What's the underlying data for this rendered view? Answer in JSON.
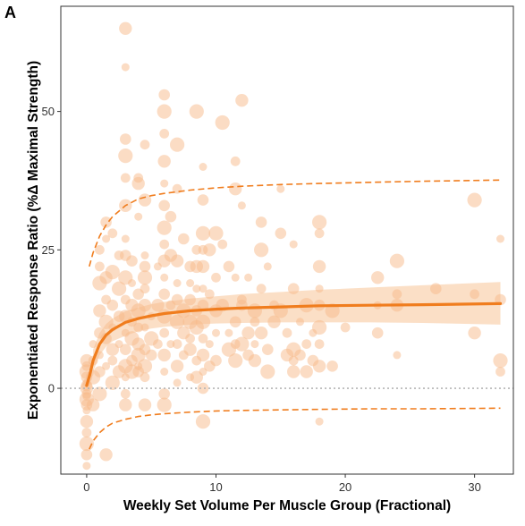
{
  "panel_label": "A",
  "colors": {
    "accent": "#f07d1e",
    "point": "#f7b98a",
    "band": "#f9c9a0",
    "zero_line": "#b5b5b5",
    "frame": "#333333"
  },
  "chart_data": {
    "type": "scatter",
    "title": "",
    "xlabel": "Weekly Set Volume Per Muscle Group (Fractional)",
    "ylabel": "Exponentiated Response Ratio (%Δ Maximal Strength)",
    "xlim": [
      -2,
      33
    ],
    "ylim": [
      -15.5,
      69
    ],
    "x_ticks": [
      0,
      10,
      20,
      30
    ],
    "y_ticks": [
      0,
      25,
      50
    ],
    "x_tick_labels": [
      "0",
      "10",
      "20",
      "30"
    ],
    "y_tick_labels": [
      "0",
      "25",
      "50"
    ],
    "grid": false,
    "legend": "none",
    "reference_line": {
      "y": 0,
      "style": "dotted"
    },
    "points": [
      [
        0,
        -14
      ],
      [
        0,
        -12
      ],
      [
        0,
        -10
      ],
      [
        0,
        -8
      ],
      [
        0,
        -6
      ],
      [
        0,
        -4
      ],
      [
        0,
        -3
      ],
      [
        0,
        -2
      ],
      [
        0,
        -1
      ],
      [
        0,
        0
      ],
      [
        0,
        1
      ],
      [
        0,
        2
      ],
      [
        0,
        3
      ],
      [
        0,
        4
      ],
      [
        0,
        5
      ],
      [
        0,
        -1.5
      ],
      [
        0,
        0.5
      ],
      [
        0.5,
        2
      ],
      [
        0.5,
        5
      ],
      [
        0.5,
        -3
      ],
      [
        0.5,
        8
      ],
      [
        1,
        10
      ],
      [
        1,
        19
      ],
      [
        1,
        22
      ],
      [
        1,
        14
      ],
      [
        1,
        6
      ],
      [
        1,
        3
      ],
      [
        1,
        -1
      ],
      [
        1,
        25
      ],
      [
        1.5,
        -12
      ],
      [
        1.5,
        4
      ],
      [
        1.5,
        9
      ],
      [
        1.5,
        12
      ],
      [
        1.5,
        16
      ],
      [
        1.5,
        20
      ],
      [
        1.5,
        27
      ],
      [
        1.5,
        30
      ],
      [
        2,
        1
      ],
      [
        2,
        5
      ],
      [
        2,
        7
      ],
      [
        2,
        11
      ],
      [
        2,
        15
      ],
      [
        2,
        21
      ],
      [
        2,
        28
      ],
      [
        2.5,
        3
      ],
      [
        2.5,
        8
      ],
      [
        2.5,
        13
      ],
      [
        2.5,
        18
      ],
      [
        2.5,
        24
      ],
      [
        3,
        65
      ],
      [
        3,
        58
      ],
      [
        3,
        45
      ],
      [
        3,
        42
      ],
      [
        3,
        38
      ],
      [
        3,
        33
      ],
      [
        3,
        27
      ],
      [
        3,
        24
      ],
      [
        3,
        20
      ],
      [
        3,
        16
      ],
      [
        3,
        13
      ],
      [
        3,
        10
      ],
      [
        3,
        7
      ],
      [
        3,
        4
      ],
      [
        3,
        -1
      ],
      [
        3,
        -3
      ],
      [
        3,
        2
      ],
      [
        3.5,
        5
      ],
      [
        3.5,
        9
      ],
      [
        3.5,
        12
      ],
      [
        3.5,
        15
      ],
      [
        3.5,
        19
      ],
      [
        3.5,
        23
      ],
      [
        3.5,
        3
      ],
      [
        4,
        38
      ],
      [
        4,
        37
      ],
      [
        4,
        31
      ],
      [
        4,
        17
      ],
      [
        4,
        14
      ],
      [
        4,
        11
      ],
      [
        4,
        8
      ],
      [
        4,
        4
      ],
      [
        4,
        3
      ],
      [
        4,
        6
      ],
      [
        4.5,
        44
      ],
      [
        4.5,
        34
      ],
      [
        4.5,
        24
      ],
      [
        4.5,
        22
      ],
      [
        4.5,
        20
      ],
      [
        4.5,
        18
      ],
      [
        4.5,
        15
      ],
      [
        4.5,
        11
      ],
      [
        4.5,
        7
      ],
      [
        4.5,
        4
      ],
      [
        4.5,
        2
      ],
      [
        4.5,
        -3
      ],
      [
        5,
        13
      ],
      [
        5,
        6
      ],
      [
        5,
        9
      ],
      [
        5.5,
        8
      ],
      [
        5.5,
        15
      ],
      [
        5.5,
        22
      ],
      [
        6,
        53
      ],
      [
        6,
        50
      ],
      [
        6,
        46
      ],
      [
        6,
        41
      ],
      [
        6,
        37
      ],
      [
        6,
        33
      ],
      [
        6,
        29
      ],
      [
        6,
        26
      ],
      [
        6,
        23
      ],
      [
        6,
        20
      ],
      [
        6,
        17
      ],
      [
        6,
        13
      ],
      [
        6,
        10
      ],
      [
        6,
        6
      ],
      [
        6,
        3
      ],
      [
        6,
        -1
      ],
      [
        6,
        -3
      ],
      [
        6.5,
        15
      ],
      [
        6.5,
        24
      ],
      [
        6.5,
        8
      ],
      [
        6.5,
        31
      ],
      [
        7,
        44
      ],
      [
        7,
        36
      ],
      [
        7,
        23
      ],
      [
        7,
        19
      ],
      [
        7,
        16
      ],
      [
        7,
        12
      ],
      [
        7,
        8
      ],
      [
        7,
        4
      ],
      [
        7,
        1
      ],
      [
        7.5,
        27
      ],
      [
        7.5,
        14
      ],
      [
        7.5,
        6
      ],
      [
        7.5,
        10
      ],
      [
        8,
        19
      ],
      [
        8,
        16
      ],
      [
        8,
        12
      ],
      [
        8,
        9
      ],
      [
        8,
        7
      ],
      [
        8,
        2
      ],
      [
        8,
        22
      ],
      [
        8.5,
        50
      ],
      [
        8.5,
        25
      ],
      [
        8.5,
        22
      ],
      [
        8.5,
        18
      ],
      [
        8.5,
        14
      ],
      [
        8.5,
        11
      ],
      [
        8.5,
        5
      ],
      [
        8.5,
        2
      ],
      [
        9,
        40
      ],
      [
        9,
        34
      ],
      [
        9,
        28
      ],
      [
        9,
        25
      ],
      [
        9,
        22
      ],
      [
        9,
        18
      ],
      [
        9,
        15
      ],
      [
        9,
        12
      ],
      [
        9,
        9
      ],
      [
        9,
        6
      ],
      [
        9,
        3
      ],
      [
        9,
        0
      ],
      [
        9,
        -6
      ],
      [
        9.5,
        17
      ],
      [
        9.5,
        25
      ],
      [
        9.5,
        8
      ],
      [
        9.5,
        4
      ],
      [
        10,
        28
      ],
      [
        10,
        20
      ],
      [
        10,
        14
      ],
      [
        10,
        10
      ],
      [
        10,
        5
      ],
      [
        10.5,
        48
      ],
      [
        10.5,
        26
      ],
      [
        10.5,
        15
      ],
      [
        11,
        10
      ],
      [
        11,
        22
      ],
      [
        11,
        7
      ],
      [
        11.5,
        41
      ],
      [
        11.5,
        36
      ],
      [
        11.5,
        20
      ],
      [
        11.5,
        12
      ],
      [
        11.5,
        5
      ],
      [
        11.5,
        8
      ],
      [
        12,
        52
      ],
      [
        12,
        33
      ],
      [
        12,
        15
      ],
      [
        12,
        8
      ],
      [
        12,
        16
      ],
      [
        12.5,
        10
      ],
      [
        12.5,
        20
      ],
      [
        12.5,
        6
      ],
      [
        13,
        14
      ],
      [
        13,
        12
      ],
      [
        13,
        5
      ],
      [
        13,
        8
      ],
      [
        13.5,
        30
      ],
      [
        13.5,
        25
      ],
      [
        13.5,
        18
      ],
      [
        13.5,
        10
      ],
      [
        14,
        22
      ],
      [
        14,
        7
      ],
      [
        14,
        3
      ],
      [
        14.5,
        15
      ],
      [
        14.5,
        12
      ],
      [
        15,
        36
      ],
      [
        15,
        28
      ],
      [
        15,
        14
      ],
      [
        15.5,
        10
      ],
      [
        15.5,
        6
      ],
      [
        16,
        26
      ],
      [
        16,
        18
      ],
      [
        16,
        7
      ],
      [
        16,
        5
      ],
      [
        16,
        3
      ],
      [
        16.5,
        12
      ],
      [
        16.5,
        6
      ],
      [
        17,
        15
      ],
      [
        17,
        8
      ],
      [
        17,
        3
      ],
      [
        17.5,
        10
      ],
      [
        17.5,
        5
      ],
      [
        18,
        30
      ],
      [
        18,
        28
      ],
      [
        18,
        22
      ],
      [
        18,
        18
      ],
      [
        18,
        15
      ],
      [
        18,
        11
      ],
      [
        18,
        8
      ],
      [
        18,
        4
      ],
      [
        18,
        -6
      ],
      [
        19,
        4
      ],
      [
        19,
        14
      ],
      [
        20,
        11
      ],
      [
        22.5,
        20
      ],
      [
        22.5,
        15
      ],
      [
        22.5,
        10
      ],
      [
        24,
        23
      ],
      [
        24,
        17
      ],
      [
        24,
        15
      ],
      [
        24,
        6
      ],
      [
        27,
        18
      ],
      [
        30,
        34
      ],
      [
        30,
        17
      ],
      [
        30,
        10
      ],
      [
        32,
        27
      ],
      [
        32,
        16
      ],
      [
        32,
        5
      ],
      [
        32,
        3
      ]
    ],
    "fit_line": {
      "x": [
        0,
        0.25,
        0.5,
        1,
        1.5,
        2,
        3,
        4,
        5,
        6,
        8,
        10,
        12,
        15,
        18,
        22,
        26,
        32
      ],
      "y": [
        0.5,
        2.5,
        5,
        8,
        9.6,
        10.6,
        11.9,
        12.6,
        13.1,
        13.5,
        14,
        14.3,
        14.5,
        14.7,
        14.9,
        15,
        15.1,
        15.3
      ]
    },
    "ci_band": {
      "x": [
        0.5,
        1,
        1.5,
        2,
        3,
        4,
        5,
        6,
        8,
        10,
        12,
        15,
        18,
        22,
        26,
        32
      ],
      "lower": [
        3,
        6,
        7.5,
        8.5,
        9.5,
        10.3,
        10.8,
        11.1,
        11.5,
        11.7,
        11.8,
        11.9,
        11.9,
        11.9,
        11.8,
        11.5
      ],
      "upper": [
        7,
        10,
        11.6,
        12.6,
        13.9,
        14.6,
        15.2,
        15.6,
        16.2,
        16.6,
        17,
        17.4,
        17.8,
        18.2,
        18.6,
        19.2
      ]
    },
    "prediction_upper": {
      "x": [
        0.2,
        0.5,
        1,
        1.5,
        2,
        3,
        4,
        5,
        6,
        8,
        10,
        12,
        15,
        18,
        22,
        26,
        32
      ],
      "y": [
        22,
        24.5,
        27.5,
        29.5,
        31,
        33,
        34.2,
        34.8,
        35.2,
        35.8,
        36.2,
        36.5,
        36.8,
        37,
        37.2,
        37.4,
        37.6
      ]
    },
    "prediction_lower": {
      "x": [
        0.2,
        0.5,
        1,
        1.5,
        2,
        3,
        4,
        5,
        6,
        8,
        10,
        12,
        15,
        18,
        22,
        26,
        32
      ],
      "y": [
        -11,
        -9.5,
        -8,
        -7,
        -6.3,
        -5.6,
        -5.1,
        -4.8,
        -4.6,
        -4.3,
        -4.1,
        -4,
        -3.9,
        -3.8,
        -3.7,
        -3.7,
        -3.6
      ]
    }
  }
}
